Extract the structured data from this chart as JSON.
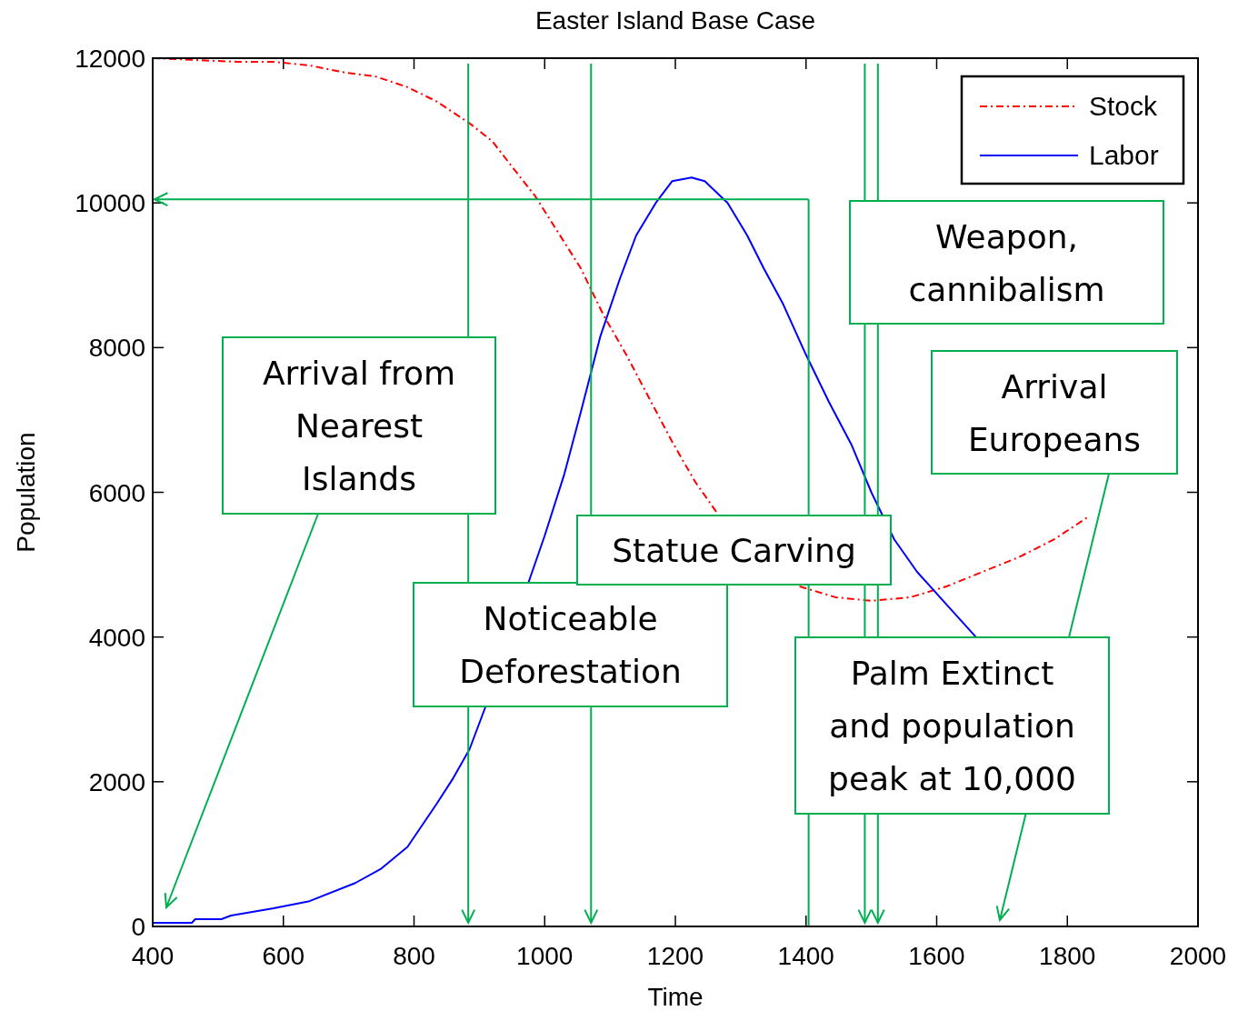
{
  "chart_data": {
    "type": "line",
    "title": "Easter Island Base Case",
    "xlabel": "Time",
    "ylabel": "Population",
    "xlim": [
      400,
      2000
    ],
    "ylim": [
      0,
      12000
    ],
    "xticks": [
      400,
      600,
      800,
      1000,
      1200,
      1400,
      1600,
      1800,
      2000
    ],
    "yticks": [
      0,
      2000,
      4000,
      6000,
      8000,
      10000,
      12000
    ],
    "legend": "top right",
    "ref_lines": [
      {
        "axis": "x",
        "value": 883,
        "color": "#00b050"
      },
      {
        "axis": "x",
        "value": 1071,
        "color": "#00b050"
      },
      {
        "axis": "x",
        "value": 1404,
        "color": "#00b050"
      },
      {
        "axis": "x",
        "value": 1490,
        "color": "#00b050"
      },
      {
        "axis": "x",
        "value": 1510,
        "color": "#00b050"
      },
      {
        "axis": "y",
        "value": 10050,
        "color": "#00b050"
      }
    ],
    "series": [
      {
        "name": "Stock",
        "color": "#ff0000",
        "line_style": "dashdot",
        "x": [
          400,
          530,
          585,
          640,
          695,
          740,
          790,
          835,
          885,
          920,
          950,
          985,
          1020,
          1055,
          1090,
          1125,
          1160,
          1195,
          1230,
          1265,
          1330,
          1390,
          1445,
          1500,
          1560,
          1615,
          1670,
          1725,
          1780,
          1830
        ],
        "values": [
          12000,
          11950,
          11950,
          11900,
          11800,
          11750,
          11600,
          11400,
          11100,
          10850,
          10500,
          10100,
          9600,
          9100,
          8450,
          7900,
          7300,
          6700,
          6150,
          5700,
          null,
          4700,
          4550,
          4500,
          4550,
          4700,
          4900,
          5100,
          5350,
          5650
        ]
      },
      {
        "name": "Labor",
        "color": "#0000ff",
        "line_style": "solid",
        "x": [
          400,
          460,
          465,
          505,
          520,
          585,
          640,
          710,
          750,
          790,
          835,
          860,
          885,
          910,
          940,
          975,
          1000,
          1030,
          1055,
          1085,
          1115,
          1140,
          1170,
          1195,
          1225,
          1245,
          1280,
          1310,
          1335,
          1365,
          1400,
          1435,
          1470,
          1500,
          1535,
          1570,
          1615,
          1660
        ],
        "values": [
          50,
          50,
          100,
          100,
          150,
          250,
          350,
          600,
          800,
          1100,
          1700,
          2050,
          2450,
          3050,
          null,
          4750,
          5400,
          6250,
          7100,
          8150,
          8950,
          9550,
          10000,
          10300,
          10350,
          10300,
          10000,
          9550,
          9100,
          8600,
          7900,
          7250,
          6650,
          6000,
          5350,
          4900,
          4450,
          4000
        ]
      }
    ],
    "annotations": [
      "Arrival from Nearest Islands",
      "Noticeable Deforestation",
      "Statue Carving",
      "Palm Extinct and population peak at 10,000",
      "Weapon, cannibalism",
      "Arrival Europeans"
    ]
  }
}
